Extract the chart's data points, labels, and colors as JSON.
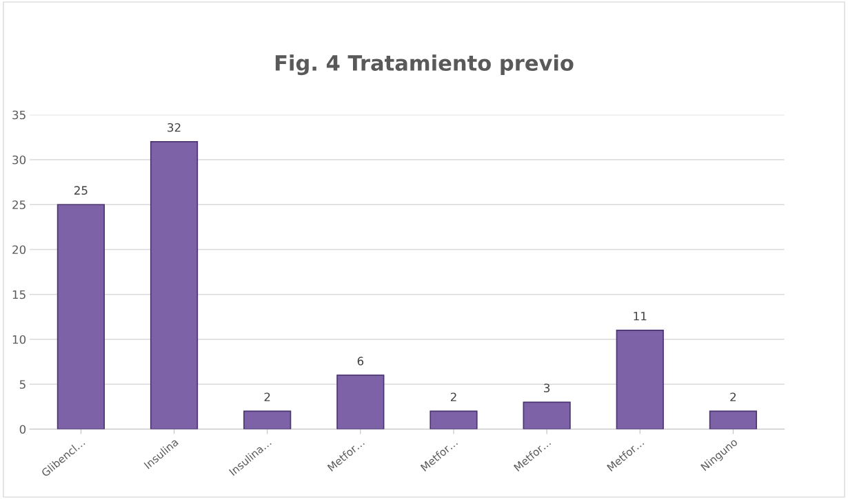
{
  "chart_data": {
    "type": "bar",
    "title": "Fig. 4 Tratamiento previo",
    "categories": [
      "Glibencl…",
      "Insulina",
      "Insulina…",
      "Metfor…",
      "Metfor…",
      "Metfor…",
      "Metfor…",
      "Ninguno"
    ],
    "values": [
      25,
      32,
      2,
      6,
      2,
      3,
      11,
      2
    ],
    "color": "#7d62a8",
    "ylim": [
      0,
      35
    ],
    "yticks": [
      0,
      5,
      10,
      15,
      20,
      25,
      30,
      35
    ],
    "grid": "y",
    "data_labels": true
  }
}
